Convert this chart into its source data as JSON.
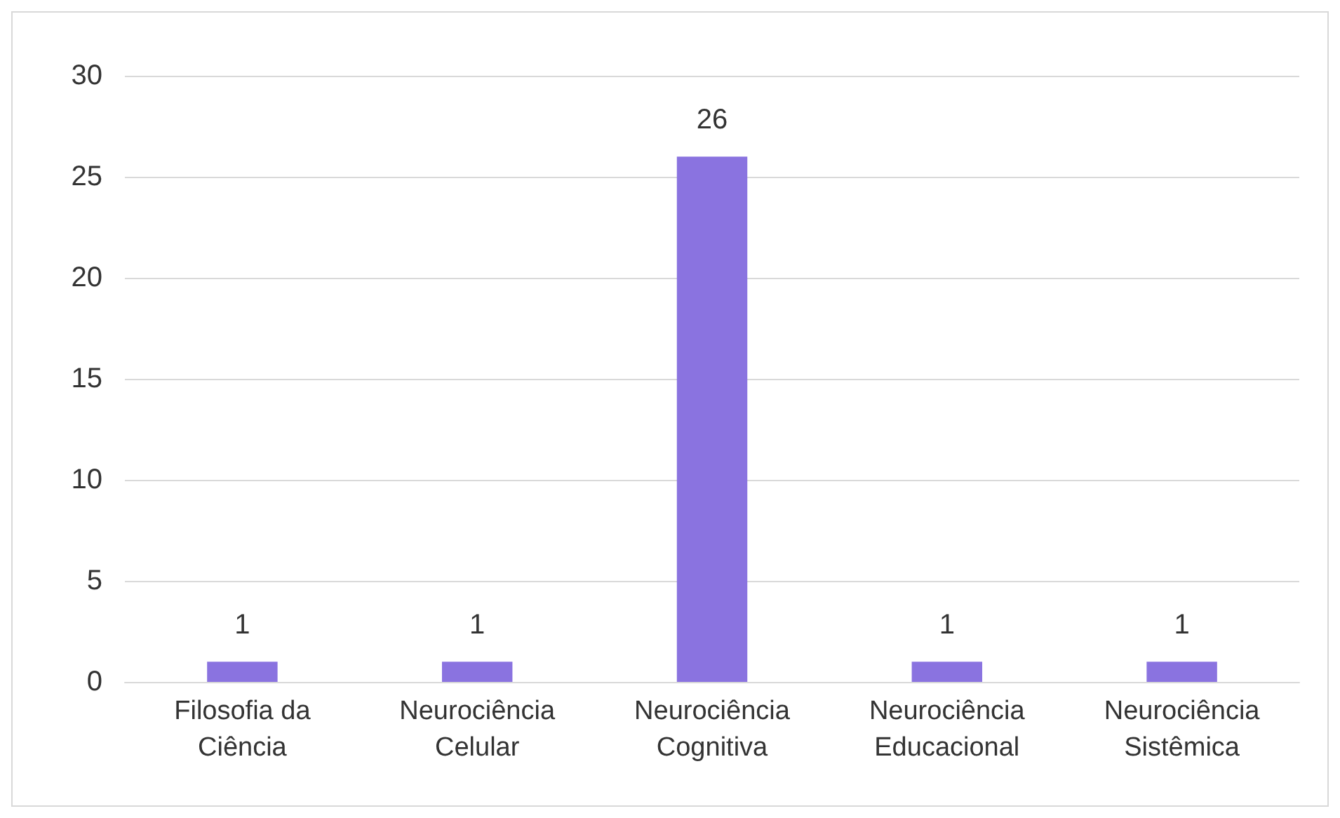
{
  "chart_data": {
    "type": "bar",
    "categories": [
      "Filosofia da\nCiência",
      "Neurociência\nCelular",
      "Neurociência\nCognitiva",
      "Neurociência\nEducacional",
      "Neurociência\nSistêmica"
    ],
    "values": [
      1,
      1,
      26,
      1,
      1
    ],
    "color": "#8a73e0",
    "ylim": [
      0,
      30
    ],
    "yticks": [
      0,
      5,
      10,
      15,
      20,
      25,
      30
    ],
    "grid": "y",
    "data_labels": true
  }
}
